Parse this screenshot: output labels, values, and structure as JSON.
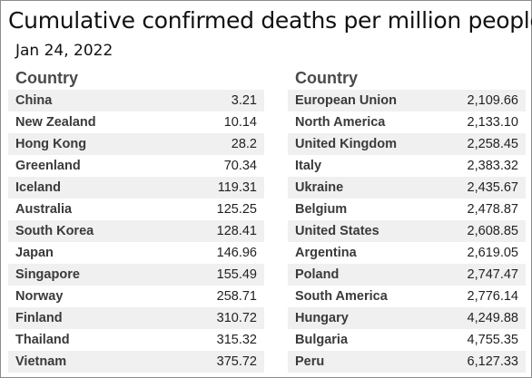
{
  "chart_data": {
    "type": "table",
    "title": "Cumulative confirmed deaths per million people",
    "subtitle": "Jan 24, 2022",
    "columns": [
      "Country",
      ""
    ],
    "tables": [
      {
        "header": "Country",
        "rows": [
          {
            "country": "China",
            "value": "3.21"
          },
          {
            "country": "New Zealand",
            "value": "10.14"
          },
          {
            "country": "Hong Kong",
            "value": "28.2"
          },
          {
            "country": "Greenland",
            "value": "70.34"
          },
          {
            "country": "Iceland",
            "value": "119.31"
          },
          {
            "country": "Australia",
            "value": "125.25"
          },
          {
            "country": "South Korea",
            "value": "128.41"
          },
          {
            "country": "Japan",
            "value": "146.96"
          },
          {
            "country": "Singapore",
            "value": "155.49"
          },
          {
            "country": "Norway",
            "value": "258.71"
          },
          {
            "country": "Finland",
            "value": "310.72"
          },
          {
            "country": "Thailand",
            "value": "315.32"
          },
          {
            "country": "Vietnam",
            "value": "375.72"
          }
        ]
      },
      {
        "header": "Country",
        "rows": [
          {
            "country": "European Union",
            "value": "2,109.66"
          },
          {
            "country": "North America",
            "value": "2,133.10"
          },
          {
            "country": "United Kingdom",
            "value": "2,258.45"
          },
          {
            "country": "Italy",
            "value": "2,383.32"
          },
          {
            "country": "Ukraine",
            "value": "2,435.67"
          },
          {
            "country": "Belgium",
            "value": "2,478.87"
          },
          {
            "country": "United States",
            "value": "2,608.85"
          },
          {
            "country": "Argentina",
            "value": "2,619.05"
          },
          {
            "country": "Poland",
            "value": "2,747.47"
          },
          {
            "country": "South America",
            "value": "2,776.14"
          },
          {
            "country": "Hungary",
            "value": "4,249.88"
          },
          {
            "country": "Bulgaria",
            "value": "4,755.35"
          },
          {
            "country": "Peru",
            "value": "6,127.33"
          }
        ]
      }
    ]
  }
}
